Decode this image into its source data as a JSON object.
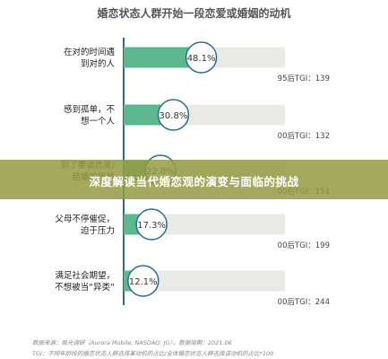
{
  "chart_data": {
    "type": "bar",
    "title": "婚恋状态人群开始一段恋爱或婚姻的动机",
    "categories": [
      "在对的时间遇到对的人",
      "感到孤单，不想一个人",
      "到了要谈恋爱/结婚的年龄",
      "父母不停催促，迫于压力",
      "满足社会期望，不想被当“异类”"
    ],
    "category_labels": [
      [
        "在对的时间遇",
        "到对的人"
      ],
      [
        "感到孤单，不",
        "想一个人"
      ],
      [
        "到了要谈恋爱/",
        "结婚的年龄"
      ],
      [
        "父母不停催促，",
        "迫于压力"
      ],
      [
        "满足社会期望，",
        "不想被当“异类”"
      ]
    ],
    "values": [
      48.1,
      30.8,
      22.8,
      17.3,
      12.1
    ],
    "value_labels": [
      "48.1%",
      "30.8%",
      "22.8%",
      "17.3%",
      "12.1%"
    ],
    "tgi": [
      "95后TGI：139",
      "00后TGI：132",
      "00后TGI：151",
      "00后TGI：199",
      "00后TGI：244"
    ],
    "xlim": [
      0,
      100
    ],
    "bar_color": "#5cb88e",
    "track_color": "#e9eae6"
  },
  "banner": {
    "text": "深度解读当代婚恋观的演变与面临的挑战"
  },
  "footer": {
    "source": "数据来源：极光调研（Aurora Mobile, NASDAQ: JG），数据周期：2021.06",
    "note": "TGI：不同年龄段的婚恋状态人群选择某动机的占比/全体婚恋状态人群选择该动机的占比*100"
  }
}
